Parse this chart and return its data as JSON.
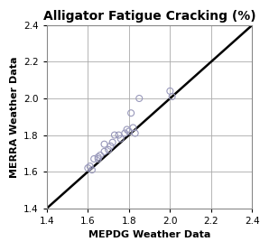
{
  "title": "Alligator Fatigue Cracking (%)",
  "xlabel": "MEPDG Weather Data",
  "ylabel": "MERRA Weather Data",
  "xlim": [
    1.4,
    2.4
  ],
  "ylim": [
    1.4,
    2.4
  ],
  "xticks": [
    1.4,
    1.6,
    1.8,
    2.0,
    2.2,
    2.4
  ],
  "yticks": [
    1.4,
    1.6,
    1.8,
    2.0,
    2.2,
    2.4
  ],
  "scatter_x": [
    1.6,
    1.61,
    1.62,
    1.63,
    1.65,
    1.65,
    1.66,
    1.68,
    1.68,
    1.7,
    1.71,
    1.72,
    1.73,
    1.75,
    1.76,
    1.78,
    1.79,
    1.8,
    1.81,
    1.82,
    1.83,
    1.85,
    2.0,
    2.01
  ],
  "scatter_y": [
    1.62,
    1.63,
    1.61,
    1.67,
    1.67,
    1.68,
    1.69,
    1.71,
    1.75,
    1.72,
    1.74,
    1.76,
    1.8,
    1.8,
    1.78,
    1.81,
    1.83,
    1.82,
    1.92,
    1.84,
    1.81,
    2.0,
    2.04,
    2.01
  ],
  "marker_edge_color": "#9999bb",
  "marker_size": 5,
  "line_color": "black",
  "line_width": 1.8,
  "grid_color": "#aaaaaa",
  "title_fontsize": 10,
  "label_fontsize": 8,
  "tick_fontsize": 7.5,
  "background_color": "#ffffff"
}
